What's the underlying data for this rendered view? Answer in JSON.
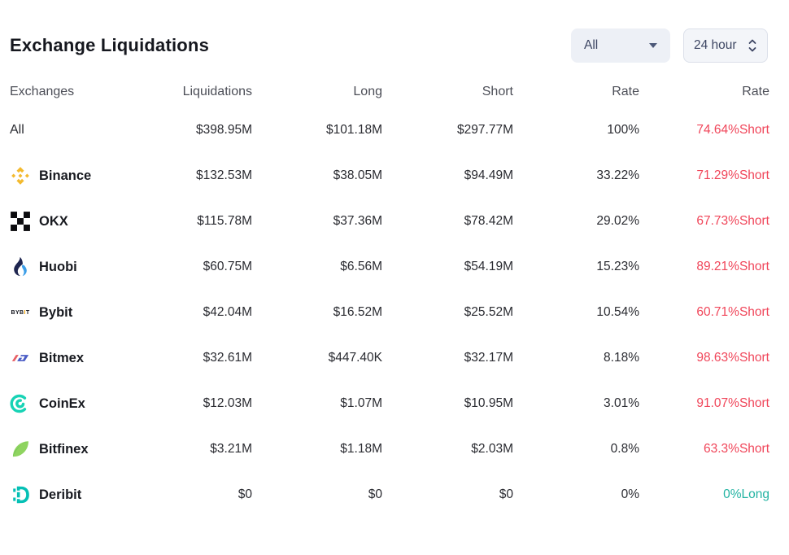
{
  "colors": {
    "short_text": "#f0465a",
    "long_text": "#22b3a2"
  },
  "header": {
    "title": "Exchange Liquidations",
    "scope_dropdown": {
      "value": "All"
    },
    "time_dropdown": {
      "value": "24 hour"
    }
  },
  "table": {
    "columns": [
      {
        "label": "Exchanges",
        "align": "left"
      },
      {
        "label": "Liquidations",
        "align": "right"
      },
      {
        "label": "Long",
        "align": "right"
      },
      {
        "label": "Short",
        "align": "right"
      },
      {
        "label": "Rate",
        "align": "right"
      },
      {
        "label": "Rate",
        "align": "right"
      }
    ],
    "rows": [
      {
        "exchange": "All",
        "icon": null,
        "liquidations": "$398.95M",
        "long": "$101.18M",
        "short": "$297.77M",
        "rate": "100%",
        "rate2": "74.64%Short",
        "rate2_side": "short"
      },
      {
        "exchange": "Binance",
        "icon": "binance-icon",
        "liquidations": "$132.53M",
        "long": "$38.05M",
        "short": "$94.49M",
        "rate": "33.22%",
        "rate2": "71.29%Short",
        "rate2_side": "short"
      },
      {
        "exchange": "OKX",
        "icon": "okx-icon",
        "liquidations": "$115.78M",
        "long": "$37.36M",
        "short": "$78.42M",
        "rate": "29.02%",
        "rate2": "67.73%Short",
        "rate2_side": "short"
      },
      {
        "exchange": "Huobi",
        "icon": "huobi-icon",
        "liquidations": "$60.75M",
        "long": "$6.56M",
        "short": "$54.19M",
        "rate": "15.23%",
        "rate2": "89.21%Short",
        "rate2_side": "short"
      },
      {
        "exchange": "Bybit",
        "icon": "bybit-icon",
        "liquidations": "$42.04M",
        "long": "$16.52M",
        "short": "$25.52M",
        "rate": "10.54%",
        "rate2": "60.71%Short",
        "rate2_side": "short"
      },
      {
        "exchange": "Bitmex",
        "icon": "bitmex-icon",
        "liquidations": "$32.61M",
        "long": "$447.40K",
        "short": "$32.17M",
        "rate": "8.18%",
        "rate2": "98.63%Short",
        "rate2_side": "short"
      },
      {
        "exchange": "CoinEx",
        "icon": "coinex-icon",
        "liquidations": "$12.03M",
        "long": "$1.07M",
        "short": "$10.95M",
        "rate": "3.01%",
        "rate2": "91.07%Short",
        "rate2_side": "short"
      },
      {
        "exchange": "Bitfinex",
        "icon": "bitfinex-icon",
        "liquidations": "$3.21M",
        "long": "$1.18M",
        "short": "$2.03M",
        "rate": "0.8%",
        "rate2": "63.3%Short",
        "rate2_side": "short"
      },
      {
        "exchange": "Deribit",
        "icon": "deribit-icon",
        "liquidations": "$0",
        "long": "$0",
        "short": "$0",
        "rate": "0%",
        "rate2": "0%Long",
        "rate2_side": "long"
      }
    ]
  }
}
